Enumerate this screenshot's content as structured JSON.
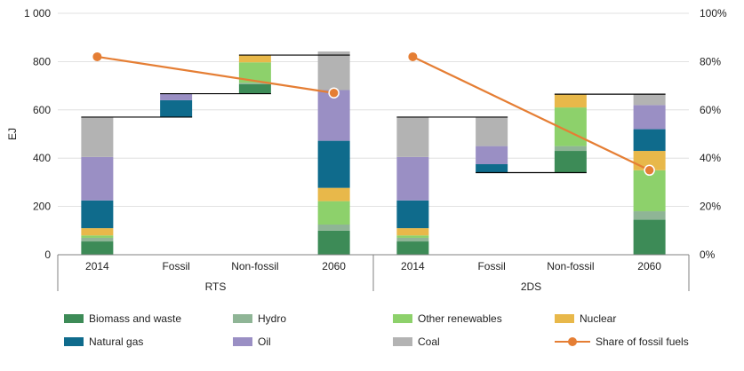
{
  "chart_data": {
    "type": "bar",
    "subtype": "waterfall-stacked",
    "ylabel": "EJ",
    "ylim": [
      0,
      1000
    ],
    "y2lim": [
      0,
      100
    ],
    "yticks": [
      "0",
      "200",
      "400",
      "600",
      "800",
      "1 000"
    ],
    "y2ticks": [
      "0%",
      "20%",
      "40%",
      "60%",
      "80%",
      "100%"
    ],
    "grid": true,
    "legend_position": "bottom",
    "groups": [
      {
        "name": "RTS",
        "categories": [
          "2014",
          "Fossil",
          "Non-fossil",
          "2060"
        ],
        "bars": [
          {
            "base": 0,
            "segments": {
              "Biomass and waste": 55,
              "Hydro": 15,
              "Other renewables": 10,
              "Nuclear": 30,
              "Natural gas": 115,
              "Oil": 180,
              "Coal": 165
            }
          },
          {
            "base": 570,
            "segments": {
              "Natural gas": 70,
              "Oil": 27
            }
          },
          {
            "base": 667,
            "segments": {
              "Biomass and waste": 40,
              "Hydro": 5,
              "Other renewables": 85,
              "Nuclear": 30
            }
          },
          {
            "base": 0,
            "segments": {
              "Biomass and waste": 100,
              "Hydro": 25,
              "Other renewables": 97,
              "Nuclear": 55,
              "Natural gas": 195,
              "Oil": 210,
              "Coal": 160
            }
          }
        ],
        "share_of_fossil_fuels": [
          82,
          67
        ]
      },
      {
        "name": "2DS",
        "categories": [
          "2014",
          "Fossil",
          "Non-fossil",
          "2060"
        ],
        "bars": [
          {
            "base": 0,
            "segments": {
              "Biomass and waste": 55,
              "Hydro": 15,
              "Other renewables": 10,
              "Nuclear": 30,
              "Natural gas": 115,
              "Oil": 180,
              "Coal": 165
            }
          },
          {
            "base": 340,
            "segments": {
              "Natural gas": 35,
              "Oil": 75,
              "Coal": 120
            }
          },
          {
            "base": 340,
            "segments": {
              "Biomass and waste": 90,
              "Hydro": 20,
              "Other renewables": 160,
              "Nuclear": 55
            }
          },
          {
            "base": 0,
            "segments": {
              "Biomass and waste": 145,
              "Hydro": 35,
              "Other renewables": 170,
              "Nuclear": 80,
              "Natural gas": 90,
              "Oil": 100,
              "Coal": 45
            }
          }
        ],
        "share_of_fossil_fuels": [
          82,
          35
        ]
      }
    ],
    "series": [
      {
        "name": "Biomass and waste",
        "color": "#3d8b57"
      },
      {
        "name": "Hydro",
        "color": "#8fb596"
      },
      {
        "name": "Other renewables",
        "color": "#8dd16b"
      },
      {
        "name": "Nuclear",
        "color": "#e8b84a"
      },
      {
        "name": "Natural gas",
        "color": "#0f6b8c"
      },
      {
        "name": "Oil",
        "color": "#9a8fc4"
      },
      {
        "name": "Coal",
        "color": "#b3b3b3"
      },
      {
        "name": "Share of fossil fuels",
        "color": "#e57e34",
        "type": "line"
      }
    ]
  }
}
